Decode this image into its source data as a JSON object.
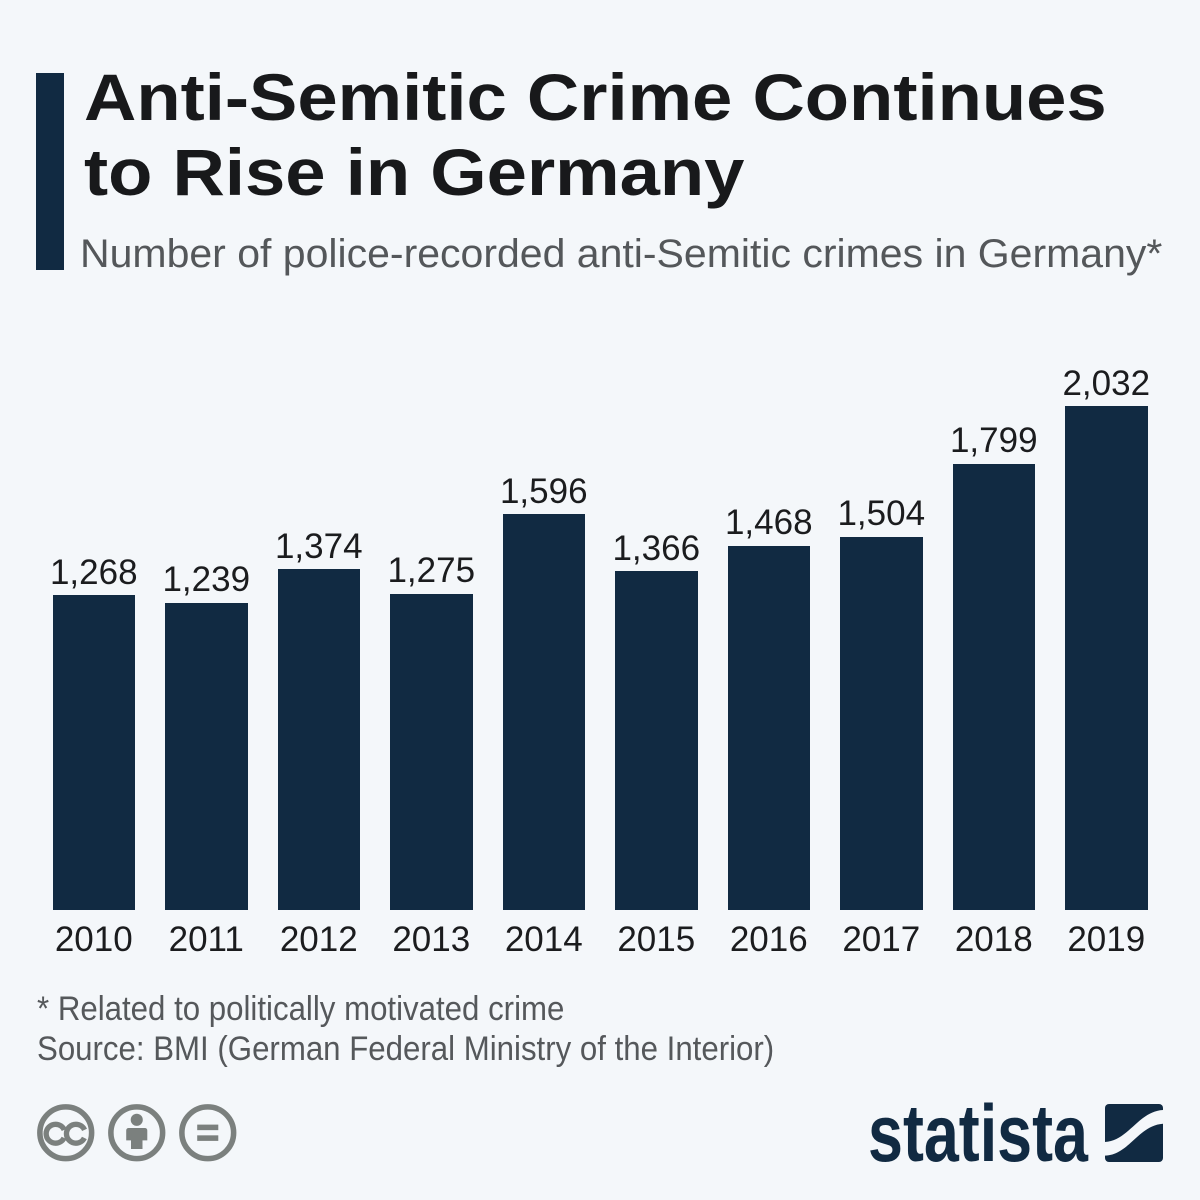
{
  "page": {
    "background_color": "#f4f7fa",
    "accent_color": "#112a42"
  },
  "header": {
    "title": "Anti-Semitic Crime Continues\nto Rise in Germany",
    "subtitle": "Number of police-recorded anti-Semitic crimes in Germany*"
  },
  "chart_data": {
    "type": "bar",
    "title": "Anti-Semitic Crime Continues to Rise in Germany",
    "subtitle": "Number of police-recorded anti-Semitic crimes in Germany*",
    "categories": [
      "2010",
      "2011",
      "2012",
      "2013",
      "2014",
      "2015",
      "2016",
      "2017",
      "2018",
      "2019"
    ],
    "values": [
      1268,
      1239,
      1374,
      1275,
      1596,
      1366,
      1468,
      1504,
      1799,
      2032
    ],
    "value_labels": [
      "1,268",
      "1,239",
      "1,374",
      "1,275",
      "1,596",
      "1,366",
      "1,468",
      "1,504",
      "1,799",
      "2,032"
    ],
    "xlabel": "",
    "ylabel": "",
    "ylim": [
      0,
      2032
    ],
    "bar_color": "#112a42",
    "grid": false,
    "legend": false
  },
  "footer": {
    "footnote": "* Related to politically motivated crime",
    "source": "Source: BMI (German Federal Ministry of the Interior)",
    "license_icons": [
      "cc-icon",
      "attribution-person-icon",
      "equals-icon"
    ],
    "brand_wordmark": "statista"
  }
}
